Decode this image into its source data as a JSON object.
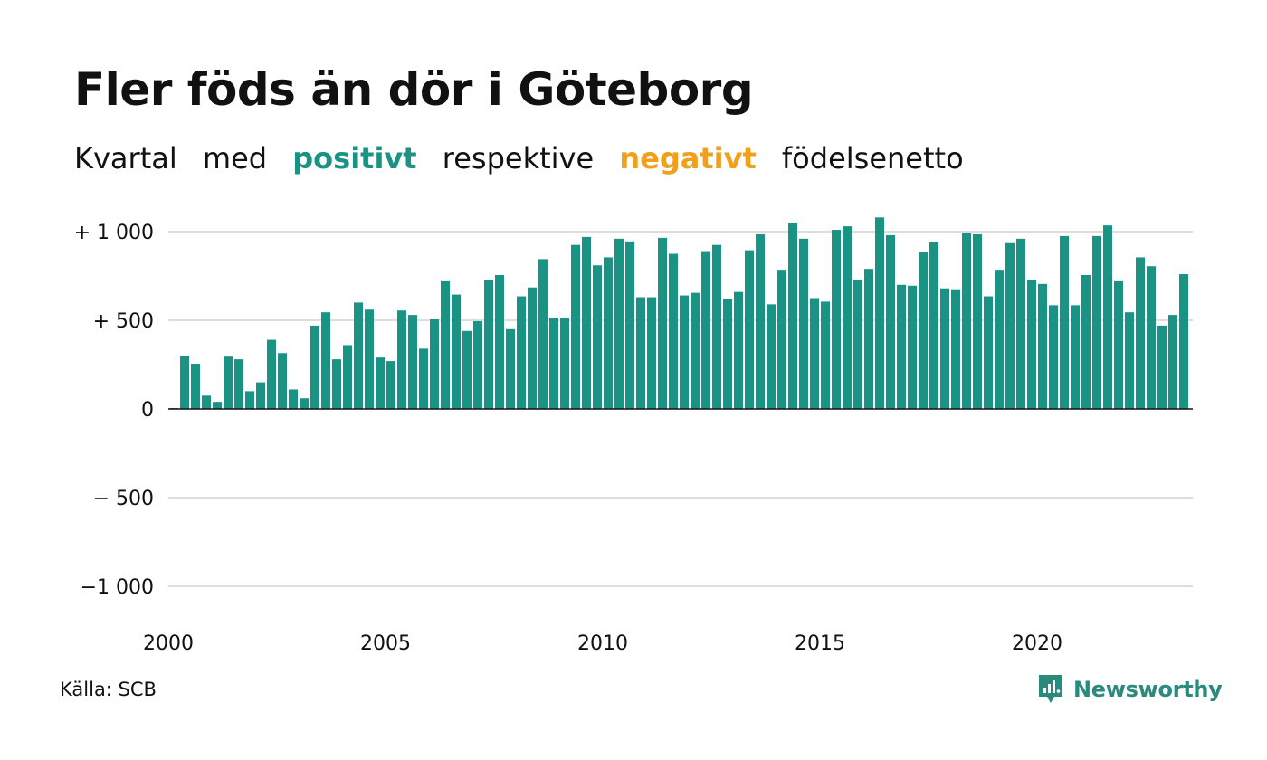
{
  "title": "Fler föds än dör i Göteborg",
  "subtitle": {
    "w1": "Kvartal",
    "w2": "med",
    "positive": "positivt",
    "w3": "respektive",
    "negative": "negativt",
    "w4": "födelsenetto"
  },
  "source": "Källa: SCB",
  "brand": "Newsworthy",
  "colors": {
    "positive": "#1a9384",
    "negative": "#f29f1a",
    "grid": "#dddddd",
    "brand": "#2a8a7e"
  },
  "chart_data": {
    "type": "bar",
    "xlabel": "",
    "ylabel": "",
    "ylim": [
      -1000,
      1000
    ],
    "x_range": [
      2000,
      2023.75
    ],
    "y_ticks": [
      {
        "value": 1000,
        "label": "+ 1 000"
      },
      {
        "value": 500,
        "label": "+   500"
      },
      {
        "value": 0,
        "label": "0"
      },
      {
        "value": -500,
        "label": "−  500"
      },
      {
        "value": -1000,
        "label": "−1 000"
      }
    ],
    "x_ticks": [
      {
        "value": 2000,
        "label": "2000"
      },
      {
        "value": 2005,
        "label": "2005"
      },
      {
        "value": 2010,
        "label": "2010"
      },
      {
        "value": 2015,
        "label": "2015"
      },
      {
        "value": 2020,
        "label": "2020"
      }
    ],
    "start_year": 2000,
    "values": [
      5,
      300,
      255,
      75,
      40,
      295,
      280,
      100,
      150,
      390,
      315,
      110,
      60,
      470,
      545,
      280,
      360,
      600,
      560,
      290,
      270,
      555,
      530,
      340,
      505,
      720,
      645,
      440,
      495,
      725,
      755,
      450,
      635,
      685,
      845,
      515,
      515,
      925,
      970,
      810,
      855,
      960,
      945,
      630,
      630,
      965,
      875,
      640,
      655,
      890,
      925,
      620,
      660,
      895,
      985,
      590,
      785,
      1050,
      960,
      625,
      605,
      1010,
      1030,
      730,
      790,
      1080,
      980,
      700,
      695,
      885,
      940,
      680,
      675,
      990,
      985,
      635,
      785,
      935,
      960,
      725,
      705,
      585,
      975,
      585,
      755,
      975,
      1035,
      720,
      545,
      855,
      805,
      470,
      530,
      760
    ]
  }
}
